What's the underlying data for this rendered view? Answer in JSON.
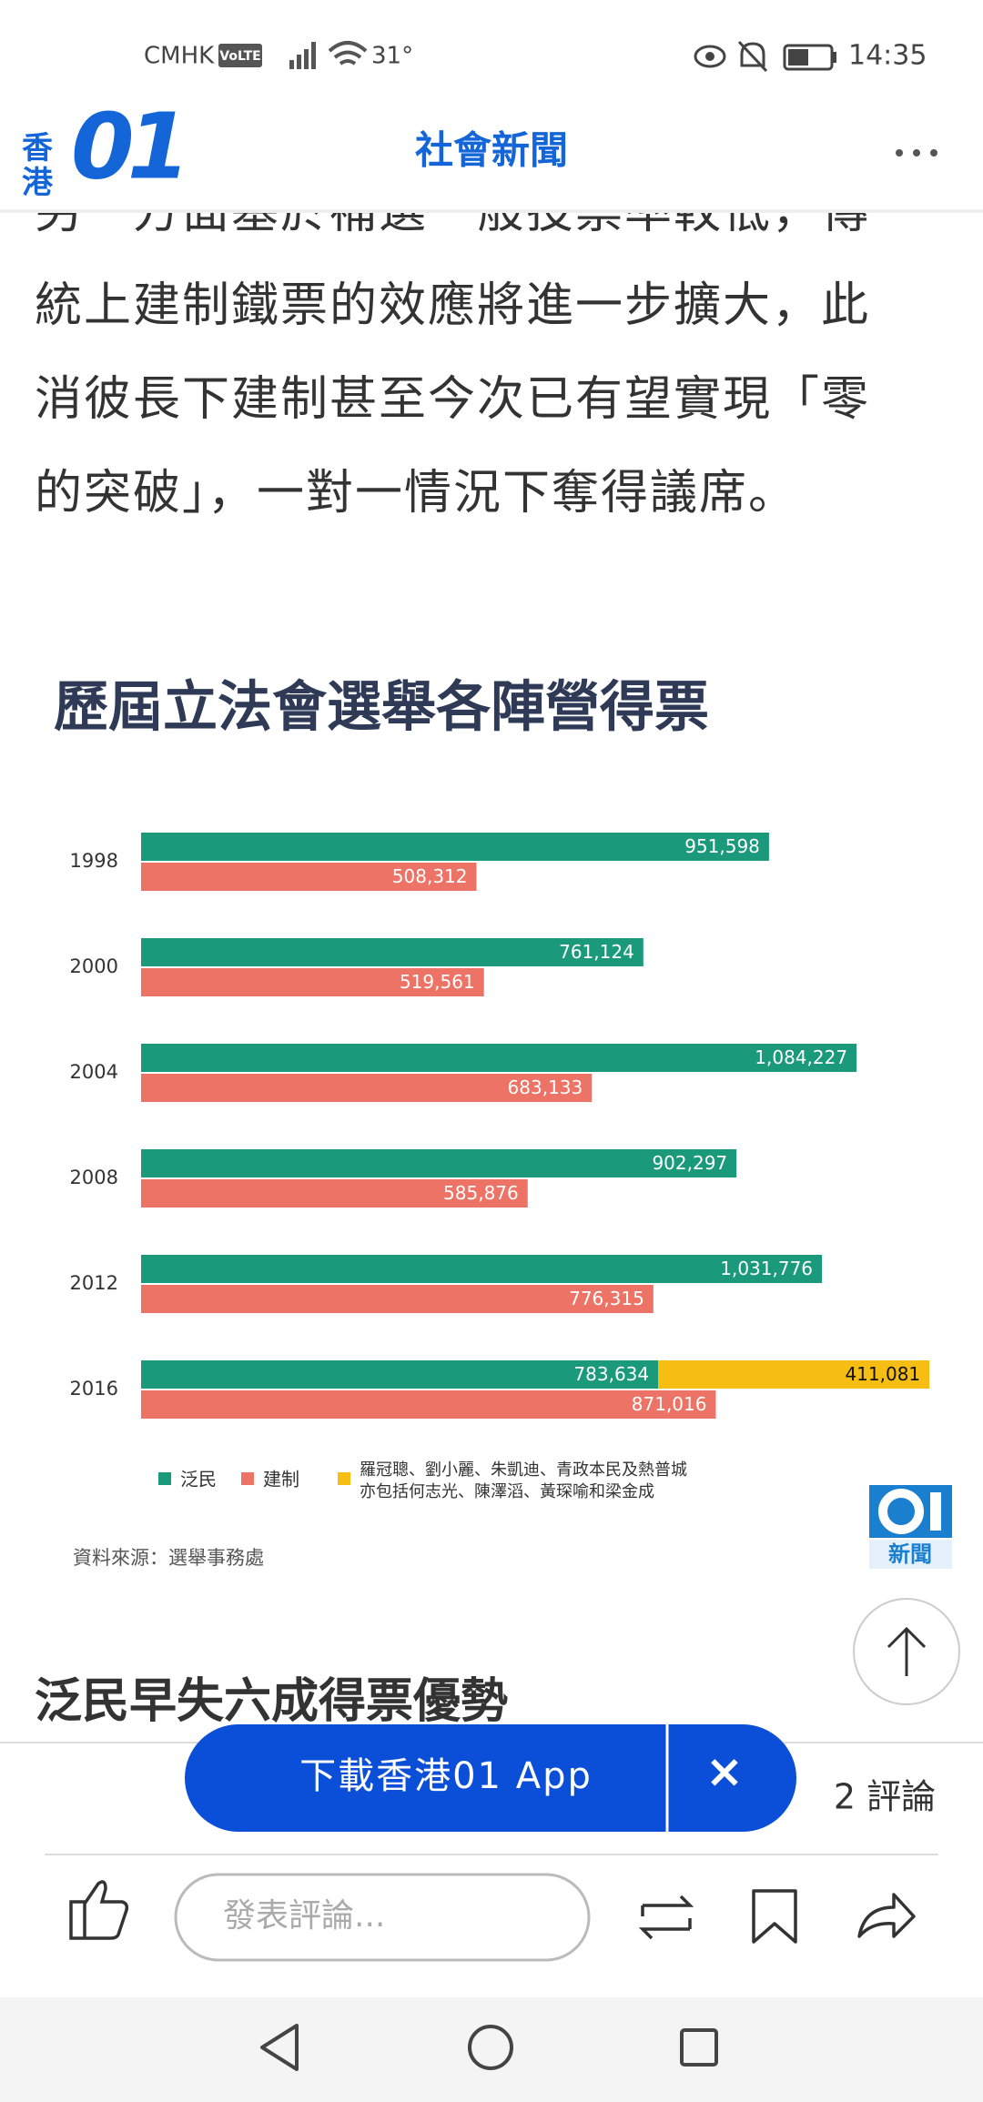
{
  "status_bar": {
    "carrier": "CMHK",
    "volte": "VoLTE",
    "temperature": "31°",
    "time": "14:35"
  },
  "header": {
    "logo_text": "香港",
    "logo_number": "01",
    "title": "社會新聞"
  },
  "article": {
    "lines": [
      "另一方面基於補選一般投票率較低，傳",
      "統上建制鐵票的效應將進一步擴大，此",
      "消彼長下建制甚至今次已有望實現「零",
      "的突破」，一對一情況下奪得議席。"
    ],
    "next_heading": "泛民早失六成得票優勢"
  },
  "chart_data": {
    "type": "bar",
    "orientation": "horizontal",
    "title": "歷屆立法會選舉各陣營得票",
    "categories": [
      "1998",
      "2000",
      "2004",
      "2008",
      "2012",
      "2016"
    ],
    "series": [
      {
        "name": "泛民",
        "color": "#1a9a7b",
        "values": [
          951598,
          761124,
          1084227,
          902297,
          1031776,
          783634
        ],
        "value_labels": [
          "951,598",
          "761,124",
          "1,084,227",
          "902,297",
          "1,031,776",
          "783,634"
        ]
      },
      {
        "name": "建制",
        "color": "#ec7366",
        "values": [
          508312,
          519561,
          683133,
          585876,
          776315,
          871016
        ],
        "value_labels": [
          "508,312",
          "519,561",
          "683,133",
          "585,876",
          "776,315",
          "871,016"
        ]
      },
      {
        "name": "羅冠聰、劉小麗、朱凱迪、青政本民及熱普城\n亦包括何志光、陳澤滔、黃琛喻和梁金成",
        "color": "#f6be12",
        "stack_on": 0,
        "values": [
          null,
          null,
          null,
          null,
          null,
          411081
        ],
        "value_labels": [
          null,
          null,
          null,
          null,
          null,
          "411,081"
        ]
      }
    ],
    "xlim": [
      0,
      1200000
    ],
    "legend": "bottom-left",
    "source": "資料來源：選舉事務處",
    "logo": "新聞"
  },
  "bottom_bar": {
    "download": "下載香港01 App",
    "close": "×",
    "comments": "2 評論",
    "comment_placeholder": "發表評論..."
  }
}
